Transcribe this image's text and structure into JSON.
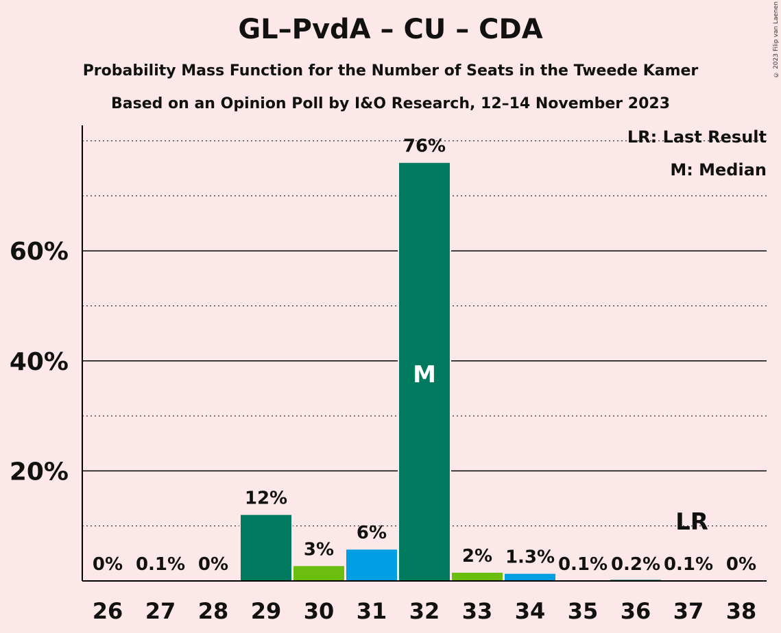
{
  "chart_data": {
    "type": "bar",
    "title": "GL–PvdA – CU – CDA",
    "subtitle": "Probability Mass Function for the Number of Seats in the Tweede Kamer",
    "subtitle2": "Based on an Opinion Poll by I&O Research, 12–14 November 2023",
    "copyright": "© 2023 Filip van Laenen",
    "legend": [
      "LR: Last Result",
      "M: Median"
    ],
    "categories": [
      "26",
      "27",
      "28",
      "29",
      "30",
      "31",
      "32",
      "33",
      "34",
      "35",
      "36",
      "37",
      "38"
    ],
    "values": [
      0,
      0.1,
      0,
      12,
      2.7,
      5.7,
      76,
      1.5,
      1.3,
      0.1,
      0.2,
      0.1,
      0
    ],
    "labels": [
      "0%",
      "0.1%",
      "0%",
      "12%",
      "3%",
      "6%",
      "76%",
      "2%",
      "1.3%",
      "0.1%",
      "0.2%",
      "0.1%",
      "0%"
    ],
    "colors": [
      "#007a5e",
      "#007a5e",
      "#007a5e",
      "#007a5e",
      "#6cbe0e",
      "#009fe3",
      "#007a5e",
      "#6cbe0e",
      "#009fe3",
      "#007a5e",
      "#007a5e",
      "#007a5e",
      "#007a5e"
    ],
    "yticks": [
      "20%",
      "40%",
      "60%"
    ],
    "ytick_values": [
      20,
      40,
      60
    ],
    "ylim": [
      0,
      82
    ],
    "median_seat": "32",
    "median_label": "M",
    "last_result_seat": "37",
    "last_result_label": "LR",
    "grid": true
  }
}
